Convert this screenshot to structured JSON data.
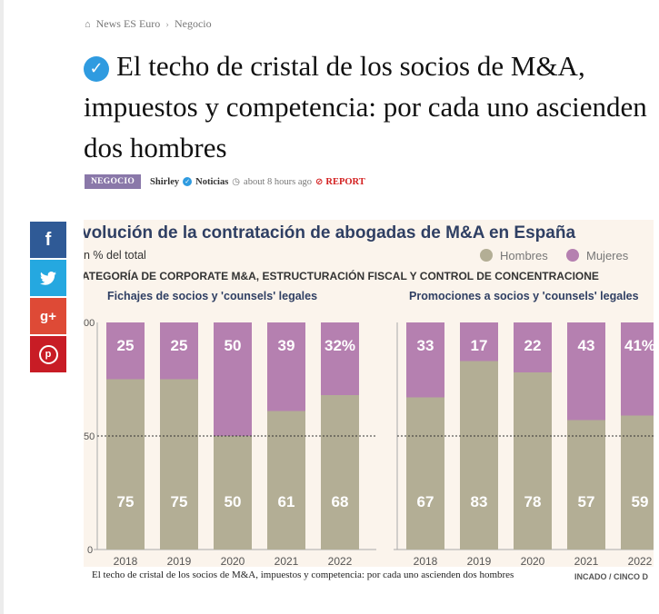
{
  "breadcrumb": {
    "home": "News ES Euro",
    "section": "Negocio"
  },
  "article": {
    "title": "El techo de cristal de los socios de M&A, impuestos y competencia: por cada uno ascienden dos hombres",
    "category": "NEGOCIO",
    "author": "Shirley",
    "author_group": "Noticias",
    "time": "about 8 hours ago",
    "report": "REPORT",
    "caption": "El techo de cristal de los socios de M&A, impuestos y competencia: por cada uno ascienden dos hombres"
  },
  "social": {
    "facebook": "f",
    "twitter": "twitter-icon",
    "googleplus": "g+",
    "pinterest": "p"
  },
  "icons": [
    "home-icon",
    "chevron-right-icon",
    "verified-check-icon",
    "clock-icon",
    "report-icon",
    "facebook-icon",
    "twitter-icon",
    "googleplus-icon",
    "pinterest-icon"
  ],
  "colors": {
    "hombres": "#b3ae95",
    "mujeres": "#b580b0",
    "title": "#2f3f63",
    "category_badge": "#8a78a9",
    "chart_bg": "#fbf4ec"
  },
  "chart_data": [
    {
      "type": "bar",
      "stacked": true,
      "title": "volución de la contratación de abogadas de M&A en España",
      "subtitle": "n % del total",
      "section_heading": "ATEGORÍA DE CORPORATE M&A, ESTRUCTURACIÓN FISCAL Y CONTROL DE CONCENTRACIONE",
      "panel_title": "Fichajes de socios y 'counsels' legales",
      "legend": [
        "Hombres",
        "Mujeres"
      ],
      "legend_placement": "top-right",
      "categories": [
        "2018",
        "2019",
        "2020",
        "2021",
        "2022"
      ],
      "series": [
        {
          "name": "Hombres",
          "values": [
            75,
            75,
            50,
            61,
            68
          ],
          "labels": [
            "75",
            "75",
            "50",
            "61",
            "68"
          ]
        },
        {
          "name": "Mujeres",
          "values": [
            25,
            25,
            50,
            39,
            32
          ],
          "labels": [
            "25",
            "25",
            "50",
            "39",
            "32%"
          ]
        }
      ],
      "ylim": [
        0,
        100
      ],
      "yticks": [
        "0",
        "50",
        "00"
      ]
    },
    {
      "type": "bar",
      "stacked": true,
      "panel_title": "Promociones a socios y 'counsels' legales",
      "categories": [
        "2018",
        "2019",
        "2020",
        "2021",
        "2022"
      ],
      "series": [
        {
          "name": "Hombres",
          "values": [
            67,
            83,
            78,
            57,
            59
          ],
          "labels": [
            "67",
            "83",
            "78",
            "57",
            "59"
          ]
        },
        {
          "name": "Mujeres",
          "values": [
            33,
            17,
            22,
            43,
            41
          ],
          "labels": [
            "33",
            "17",
            "22",
            "43",
            "41%"
          ]
        }
      ],
      "ylim": [
        0,
        100
      ],
      "source": "INCADO / CINCO D"
    }
  ]
}
